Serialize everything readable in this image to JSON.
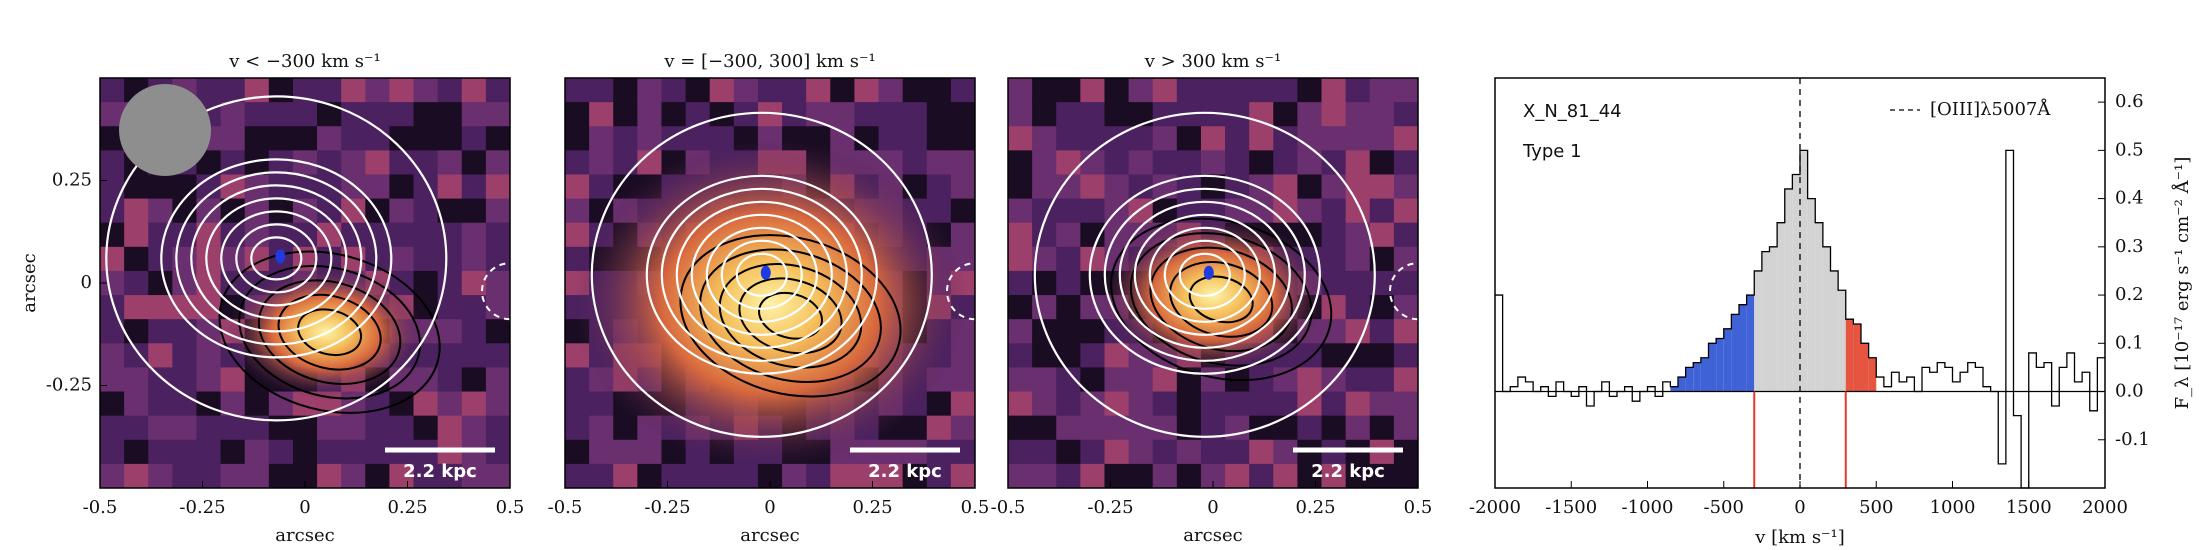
{
  "chart_data": [
    {
      "type": "image",
      "title": "v < −300 km s⁻¹",
      "xlabel": "arcsec",
      "ylabel": "arcsec",
      "xlim": [
        -0.5,
        0.5
      ],
      "ylim": [
        -0.5,
        0.5
      ],
      "xticks": [
        -0.5,
        -0.25,
        0,
        0.25,
        0.5
      ],
      "yticks": [
        -0.25,
        0,
        0.25
      ],
      "scalebar": "2.2 kpc"
    },
    {
      "type": "image",
      "title": "v = [−300, 300] km s⁻¹",
      "xlabel": "arcsec",
      "xlim": [
        -0.5,
        0.5
      ],
      "ylim": [
        -0.5,
        0.5
      ],
      "xticks": [
        -0.5,
        -0.25,
        0,
        0.25,
        0.5
      ],
      "scalebar": "2.2 kpc"
    },
    {
      "type": "image",
      "title": "v > 300 km s⁻¹",
      "xlabel": "arcsec",
      "xlim": [
        -0.5,
        0.5
      ],
      "ylim": [
        -0.5,
        0.5
      ],
      "xticks": [
        -0.5,
        -0.25,
        0,
        0.25,
        0.5
      ],
      "scalebar": "2.2 kpc"
    },
    {
      "type": "step",
      "xlabel": "v [km s⁻¹]",
      "ylabel": "F_λ [10⁻¹⁷ erg s⁻¹ cm⁻² Å⁻¹]",
      "annotations": [
        "X_N_81_44",
        "Type 1"
      ],
      "legend": "[OIII]λ5007Å",
      "xlim": [
        -2000,
        2000
      ],
      "ylim": [
        -0.2,
        0.65
      ],
      "xticks": [
        -2000,
        -1500,
        -1000,
        -500,
        0,
        500,
        1000,
        1500,
        2000
      ],
      "yticks": [
        -0.1,
        {
          "value": 0,
          "label": "0.0"
        },
        0.1,
        0.2,
        0.3,
        0.4,
        0.5,
        0.6
      ],
      "reference_x": 0,
      "vlines": [
        -300,
        300
      ],
      "vline_color": "#e8362a",
      "regions": [
        {
          "from": -850,
          "to": -300,
          "color": "#3f62d6"
        },
        {
          "from": -300,
          "to": 300,
          "color": "#d3d3d3"
        },
        {
          "from": 300,
          "to": 500,
          "color": "#e5553f"
        }
      ],
      "x": [
        -2000,
        -1950,
        -1900,
        -1850,
        -1800,
        -1750,
        -1700,
        -1650,
        -1600,
        -1550,
        -1500,
        -1450,
        -1400,
        -1350,
        -1300,
        -1250,
        -1200,
        -1150,
        -1100,
        -1050,
        -1000,
        -950,
        -900,
        -850,
        -800,
        -750,
        -700,
        -650,
        -600,
        -550,
        -500,
        -450,
        -400,
        -350,
        -300,
        -250,
        -200,
        -150,
        -100,
        -50,
        0,
        50,
        100,
        150,
        200,
        250,
        300,
        350,
        400,
        450,
        500,
        550,
        600,
        650,
        700,
        750,
        800,
        850,
        900,
        950,
        1000,
        1050,
        1100,
        1150,
        1200,
        1250,
        1300,
        1350,
        1400,
        1450,
        1500,
        1550,
        1600,
        1650,
        1700,
        1750,
        1800,
        1850,
        1900,
        1950
      ],
      "values": [
        0.2,
        0.0,
        0.01,
        0.03,
        0.02,
        0.0,
        0.01,
        -0.01,
        0.02,
        0.0,
        -0.01,
        0.01,
        -0.03,
        0.0,
        0.02,
        -0.01,
        0.0,
        0.01,
        -0.02,
        0.0,
        0.01,
        -0.01,
        0.02,
        0.01,
        0.03,
        0.05,
        0.06,
        0.07,
        0.1,
        0.11,
        0.13,
        0.16,
        0.18,
        0.2,
        0.25,
        0.29,
        0.3,
        0.35,
        0.42,
        0.45,
        0.5,
        0.4,
        0.35,
        0.3,
        0.25,
        0.21,
        0.15,
        0.14,
        0.1,
        0.07,
        0.03,
        0.01,
        0.04,
        0.02,
        0.03,
        0.0,
        0.05,
        0.04,
        0.06,
        0.05,
        0.02,
        0.04,
        0.06,
        0.05,
        0.01,
        0.0,
        -0.15,
        0.5,
        -0.05,
        -0.2,
        0.08,
        0.05,
        0.06,
        -0.03,
        0.05,
        0.08,
        0.02,
        0.04,
        -0.04,
        0.07
      ]
    }
  ]
}
